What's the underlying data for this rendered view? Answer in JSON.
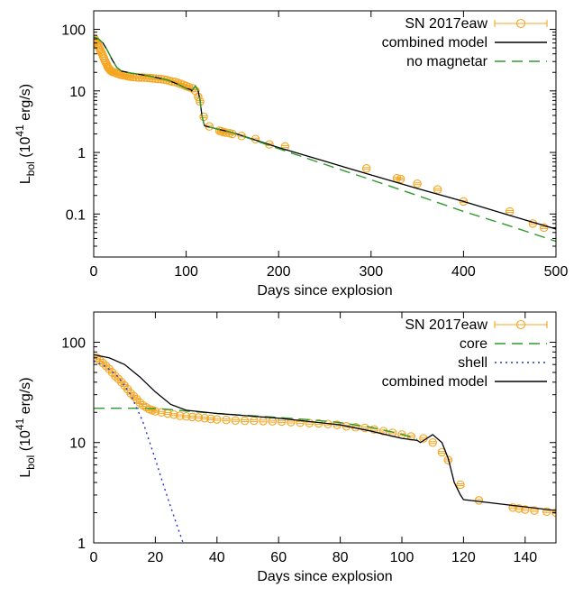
{
  "chart_data": [
    {
      "type": "scatter",
      "xlabel": "Days since explosion",
      "ylabel_main": "L",
      "ylabel_sub": "bol",
      "ylabel_pre_sup": " (10",
      "ylabel_sup": "41",
      "ylabel_post": " erg/s)",
      "xlim": [
        0,
        500
      ],
      "ylim": [
        0.02,
        200
      ],
      "yscale": "log",
      "grid": false,
      "legend_position": "top-right",
      "xticks": [
        0,
        100,
        200,
        300,
        400,
        500
      ],
      "xtick_labels": [
        "0",
        "100",
        "200",
        "300",
        "400",
        "500"
      ],
      "yticks": [
        0.1,
        1,
        10,
        100
      ],
      "ytick_labels": [
        "0.1",
        "1",
        "10",
        "100"
      ],
      "series": [
        {
          "name": "SN 2017eaw",
          "kind": "points",
          "color": "#f5a623",
          "x": [
            1,
            2,
            3,
            4,
            5,
            6,
            7,
            8,
            9,
            10,
            11,
            12,
            13,
            14,
            15,
            16,
            17,
            18,
            19,
            20,
            22,
            24,
            26,
            28,
            30,
            32,
            34,
            36,
            38,
            40,
            43,
            46,
            49,
            52,
            55,
            58,
            61,
            64,
            67,
            70,
            73,
            76,
            79,
            82,
            85,
            88,
            91,
            94,
            97,
            100,
            103,
            107,
            110,
            113,
            115,
            119,
            125,
            136,
            138,
            140,
            143,
            147,
            150,
            160,
            175,
            190,
            207,
            295,
            328,
            332,
            350,
            372,
            400,
            450,
            475,
            487
          ],
          "y": [
            70,
            66,
            62,
            58,
            54,
            50,
            46,
            43,
            40,
            37,
            34,
            31,
            29,
            27,
            25,
            23.5,
            22.5,
            21.5,
            21,
            20.5,
            20,
            19.5,
            19,
            18.5,
            18.2,
            18,
            17.8,
            17.5,
            17.2,
            17,
            16.8,
            16.6,
            16.5,
            16.5,
            16.4,
            16.3,
            16.2,
            16,
            15.8,
            15.6,
            15.5,
            15.3,
            15,
            14.5,
            14.2,
            14,
            13.5,
            13,
            12.5,
            12,
            11.5,
            11,
            10,
            8,
            6.7,
            3.8,
            2.65,
            2.25,
            2.2,
            2.15,
            2.1,
            2.05,
            2.0,
            1.85,
            1.65,
            1.35,
            1.25,
            0.55,
            0.38,
            0.37,
            0.31,
            0.25,
            0.16,
            0.11,
            0.07,
            0.06
          ]
        },
        {
          "name": "combined model",
          "kind": "line",
          "color": "#000000",
          "x": [
            0,
            5,
            10,
            15,
            20,
            25,
            30,
            40,
            60,
            80,
            90,
            100,
            105,
            106,
            110,
            113,
            115,
            117,
            119,
            120,
            150,
            200,
            250,
            300,
            350,
            400,
            450,
            500
          ],
          "y": [
            75,
            70,
            60,
            45,
            32,
            24,
            21,
            19.5,
            17.5,
            15,
            13,
            11,
            10.5,
            10,
            12,
            10,
            7,
            4,
            3,
            2.7,
            2.1,
            1.2,
            0.72,
            0.43,
            0.26,
            0.16,
            0.095,
            0.057
          ]
        },
        {
          "name": "no magnetar",
          "kind": "dashed",
          "color": "#2e9a2e",
          "x": [
            0,
            5,
            10,
            15,
            20,
            25,
            30,
            40,
            60,
            80,
            90,
            100,
            105,
            106,
            110,
            113,
            115,
            117,
            119,
            120,
            150,
            200,
            250,
            300,
            350,
            400,
            450,
            500
          ],
          "y": [
            75,
            70,
            60,
            45,
            32,
            24,
            21,
            19.5,
            17.5,
            15,
            13,
            11,
            10.5,
            10,
            12,
            10,
            7,
            4,
            3,
            2.7,
            2.1,
            1.15,
            0.64,
            0.36,
            0.2,
            0.11,
            0.064,
            0.036
          ]
        }
      ]
    },
    {
      "type": "scatter",
      "xlabel": "Days since explosion",
      "ylabel_main": "L",
      "ylabel_sub": "bol",
      "ylabel_pre_sup": " (10",
      "ylabel_sup": "41",
      "ylabel_post": " erg/s)",
      "xlim": [
        0,
        150
      ],
      "ylim": [
        1,
        200
      ],
      "yscale": "log",
      "grid": false,
      "legend_position": "top-right",
      "xticks": [
        0,
        20,
        40,
        60,
        80,
        100,
        120,
        140
      ],
      "xtick_labels": [
        "0",
        "20",
        "40",
        "60",
        "80",
        "100",
        "120",
        "140"
      ],
      "yticks": [
        1,
        10,
        100
      ],
      "ytick_labels": [
        "1",
        "10",
        "100"
      ],
      "series": [
        {
          "name": "SN 2017eaw",
          "kind": "points",
          "color": "#f5a623",
          "x": [
            1,
            2,
            3,
            4,
            5,
            6,
            7,
            8,
            9,
            10,
            11,
            12,
            13,
            14,
            15,
            16,
            17,
            18,
            19,
            20,
            22,
            24,
            26,
            28,
            30,
            32,
            34,
            36,
            38,
            40,
            43,
            46,
            49,
            52,
            55,
            58,
            61,
            64,
            67,
            70,
            73,
            76,
            79,
            82,
            85,
            88,
            91,
            94,
            97,
            100,
            103,
            107,
            110,
            113,
            115,
            119,
            125,
            136,
            138,
            140,
            143,
            147,
            150
          ],
          "y": [
            70,
            66,
            62,
            58,
            54,
            50,
            46,
            43,
            40,
            37,
            34,
            31,
            29,
            27,
            25,
            23.5,
            22.5,
            21.5,
            21,
            20.5,
            20,
            19.5,
            19,
            18.5,
            18.2,
            18,
            17.8,
            17.5,
            17.2,
            17,
            16.8,
            16.6,
            16.5,
            16.5,
            16.4,
            16.3,
            16.2,
            16,
            15.8,
            15.6,
            15.5,
            15.3,
            15,
            14.5,
            14.2,
            14,
            13.5,
            13,
            12.5,
            12,
            11.5,
            11,
            10,
            8,
            6.7,
            3.8,
            2.65,
            2.25,
            2.2,
            2.15,
            2.1,
            2.05,
            2.0
          ]
        },
        {
          "name": "core",
          "kind": "dashed",
          "color": "#2e9a2e",
          "x": [
            0,
            5,
            10,
            15,
            20,
            25,
            30,
            40,
            50,
            60,
            70,
            80,
            90,
            100,
            105
          ],
          "y": [
            22,
            22,
            22,
            22,
            21.8,
            21.3,
            20.6,
            19.5,
            18.6,
            17.8,
            16.9,
            15.8,
            14.2,
            12.1,
            10.8
          ]
        },
        {
          "name": "shell",
          "kind": "dotted",
          "color": "#1f2fd6",
          "x": [
            0,
            4,
            8,
            12,
            16,
            20,
            24,
            27,
            29
          ],
          "y": [
            65,
            57,
            45,
            30,
            16,
            6.8,
            2.8,
            1.5,
            1
          ]
        },
        {
          "name": "combined model",
          "kind": "line",
          "color": "#000000",
          "x": [
            0,
            5,
            10,
            15,
            20,
            25,
            30,
            40,
            60,
            80,
            90,
            100,
            105,
            106,
            110,
            113,
            115,
            117,
            119,
            120,
            150
          ],
          "y": [
            75,
            70,
            60,
            45,
            32,
            24,
            21,
            19.5,
            17.5,
            15,
            13,
            11,
            10.5,
            10,
            12,
            10,
            7,
            4,
            3,
            2.7,
            2.1
          ]
        }
      ]
    }
  ]
}
